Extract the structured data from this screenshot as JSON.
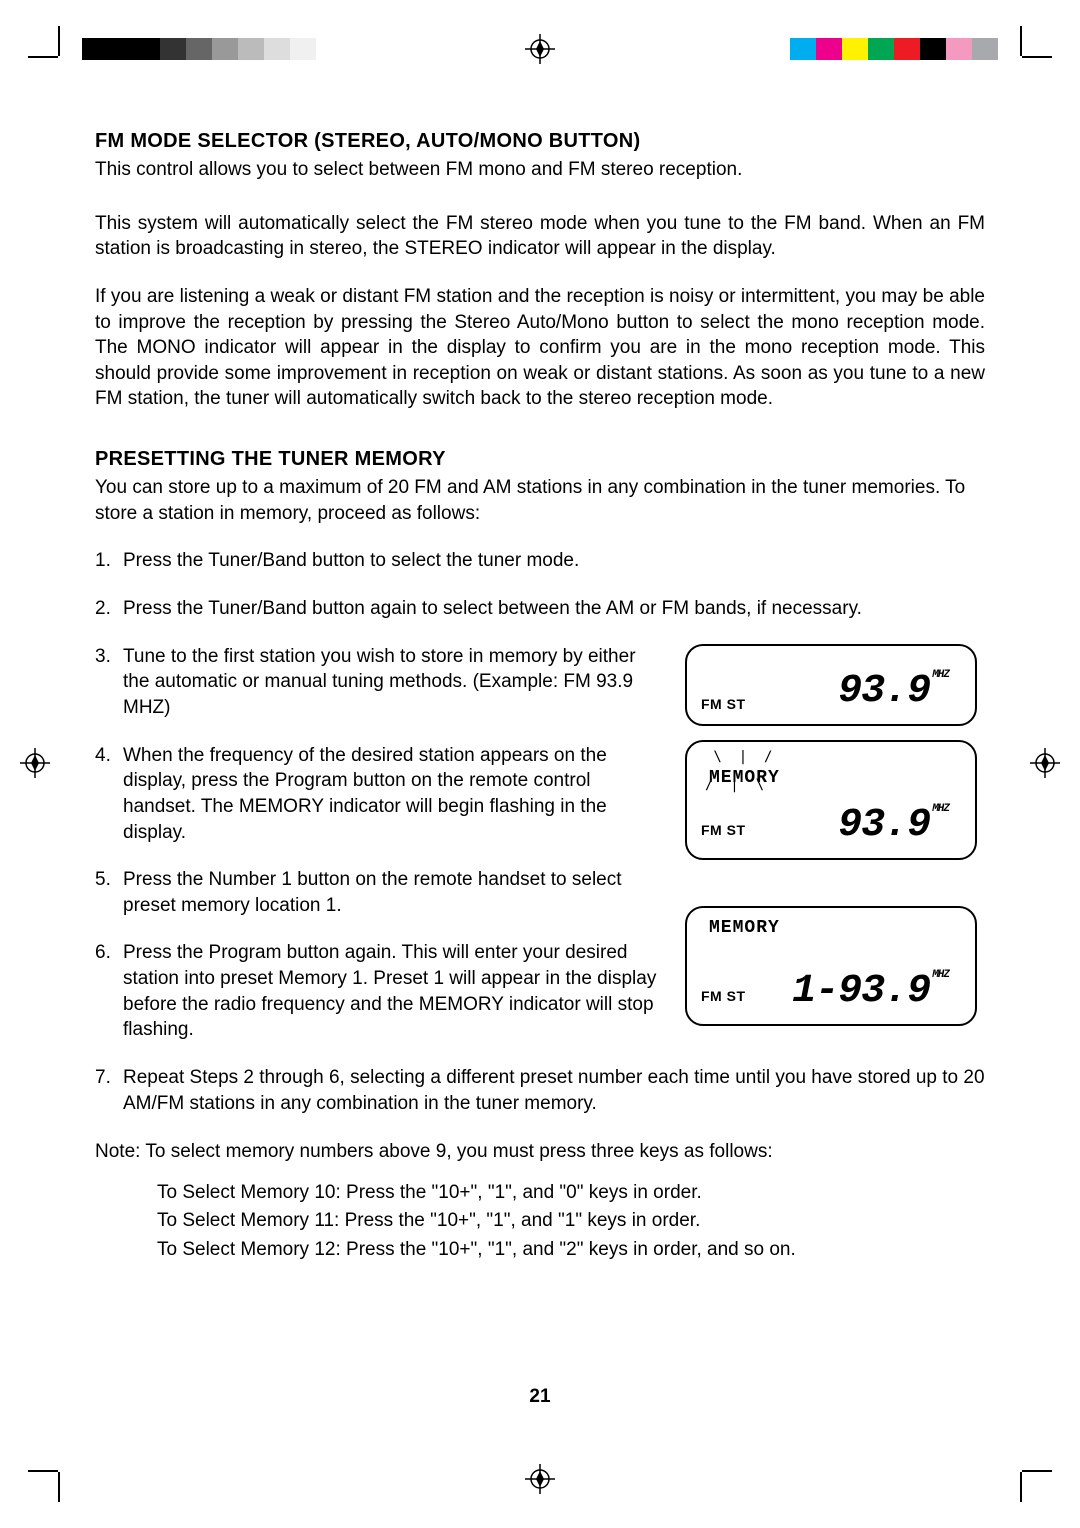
{
  "grayscale_bar": [
    "#000000",
    "#000000",
    "#000000",
    "#333333",
    "#666666",
    "#999999",
    "#bbbbbb",
    "#dddddd",
    "#f0f0f0"
  ],
  "color_bar": [
    "#00aeef",
    "#ec008c",
    "#fff200",
    "#00a651",
    "#ed1c24",
    "#000000",
    "#f49ac1",
    "#a7a9ac"
  ],
  "section1_heading": "FM MODE SELECTOR (STEREO, AUTO/MONO BUTTON)",
  "section1_p1": "This control allows you to select between FM mono and FM stereo reception.",
  "section1_p2": "This system will automatically select  the FM stereo mode when you tune to the FM band. When an FM station is broadcasting in stereo, the STEREO indicator will appear in the display.",
  "section1_p3": "If you are listening a weak or distant FM station and the reception is noisy or intermittent, you may be able to improve the reception by pressing the Stereo Auto/Mono button to select the mono reception mode. The MONO indicator will appear in the display to confirm you are in the mono reception mode. This should provide some improvement in reception on weak or distant stations. As soon as you tune to a new FM station, the tuner will automatically switch back to the stereo reception mode.",
  "section2_heading": "PRESETTING THE TUNER MEMORY",
  "section2_intro": "You can store up to a maximum of 20 FM and AM stations in any combination in the tuner memories. To store a station in memory, proceed as follows:",
  "steps": {
    "s1": "Press the Tuner/Band button to select the tuner mode.",
    "s2": "Press the Tuner/Band button again to select between the AM or FM bands, if necessary.",
    "s3": "Tune to the first station you wish to store in memory by either the automatic or manual tuning methods. (Example:  FM 93.9 MHZ)",
    "s4": "When the frequency of the desired station appears on the display, press the Program button on the remote control handset. The MEMORY indicator will begin flashing in the display.",
    "s5": "Press the Number 1 button on the remote handset to select preset memory location 1.",
    "s6": "Press the Program button again. This will enter your desired station into preset Memory 1. Preset 1 will appear in the display before the radio frequency and the MEMORY indicator will stop flashing.",
    "s7": "Repeat Steps 2 through 6, selecting a different preset number each time until you have stored up to 20 AM/FM stations in any combination in the tuner memory."
  },
  "note_lead": "Note:  To select memory numbers above 9, you must press three keys as follows:",
  "note_lines": [
    "To Select Memory 10:  Press the \"10+\", \"1\", and \"0\" keys in order.",
    "To Select Memory 11:  Press the \"10+\", \"1\", and \"1\" keys in order.",
    "To Select Memory 12:  Press the \"10+\", \"1\", and \"2\" keys in order, and so on."
  ],
  "lcd": {
    "fmst": "FM ST",
    "memory": "MEMORY",
    "freq1": "93.9",
    "freq3": "1-93.9",
    "mhz": "MHZ"
  },
  "page_number": "21"
}
